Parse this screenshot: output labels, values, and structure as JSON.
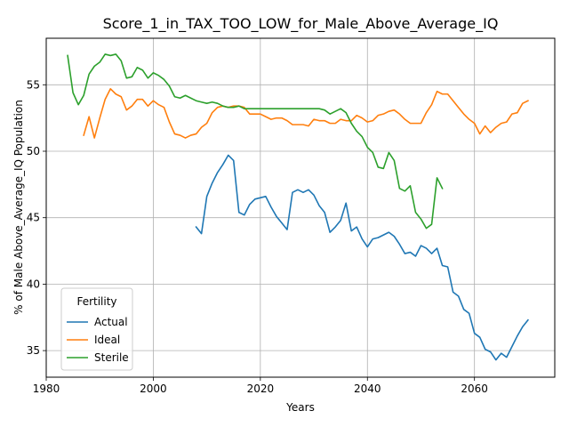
{
  "colors": {
    "actual": "#1f77b4",
    "ideal": "#ff7f0e",
    "sterile": "#2ca02c",
    "grid": "#b0b0b0"
  },
  "chart_data": {
    "type": "line",
    "title": "Score_1_in_TAX_TOO_LOW_for_Male_Above_Average_IQ",
    "xlabel": "Years",
    "ylabel": "% of Male Above_Average_IQ Population",
    "xlim": [
      1980,
      2075
    ],
    "ylim": [
      33,
      58.5
    ],
    "xticks": [
      1980,
      2000,
      2020,
      2040,
      2060
    ],
    "yticks": [
      35,
      40,
      45,
      50,
      55
    ],
    "grid": true,
    "legend": {
      "title": "Fertility",
      "position": "lower-left",
      "entries": [
        "Actual",
        "Ideal",
        "Sterile"
      ]
    },
    "series": [
      {
        "name": "Actual",
        "x": [
          2008,
          2009,
          2010,
          2011,
          2012,
          2013,
          2014,
          2015,
          2016,
          2017,
          2018,
          2019,
          2020,
          2021,
          2022,
          2023,
          2024,
          2025,
          2026,
          2027,
          2028,
          2029,
          2030,
          2031,
          2032,
          2033,
          2034,
          2035,
          2036,
          2037,
          2038,
          2039,
          2040,
          2041,
          2042,
          2043,
          2044,
          2045,
          2046,
          2047,
          2048,
          2049,
          2050,
          2051,
          2052,
          2053,
          2054,
          2055,
          2056,
          2057,
          2058,
          2059,
          2060,
          2061,
          2062,
          2063,
          2064,
          2065,
          2066,
          2067,
          2068,
          2069,
          2070
        ],
        "values": [
          44.3,
          43.8,
          46.6,
          47.6,
          48.4,
          49.0,
          49.7,
          49.3,
          45.4,
          45.2,
          46.0,
          46.4,
          46.5,
          46.6,
          45.8,
          45.1,
          44.6,
          44.1,
          46.9,
          47.1,
          46.9,
          47.1,
          46.7,
          45.9,
          45.4,
          43.9,
          44.3,
          44.8,
          46.1,
          44.0,
          44.3,
          43.4,
          42.8,
          43.4,
          43.5,
          43.7,
          43.9,
          43.6,
          43.0,
          42.3,
          42.4,
          42.1,
          42.9,
          42.7,
          42.3,
          42.7,
          41.4,
          41.3,
          39.4,
          39.1,
          38.1,
          37.8,
          36.3,
          36.0,
          35.1,
          34.9,
          34.3,
          34.8,
          34.5,
          35.3,
          36.1,
          36.8,
          37.3
        ]
      },
      {
        "name": "Ideal",
        "x": [
          1987,
          1988,
          1989,
          1990,
          1991,
          1992,
          1993,
          1994,
          1995,
          1996,
          1997,
          1998,
          1999,
          2000,
          2001,
          2002,
          2003,
          2004,
          2005,
          2006,
          2007,
          2008,
          2009,
          2010,
          2011,
          2012,
          2013,
          2014,
          2015,
          2016,
          2017,
          2018,
          2019,
          2020,
          2021,
          2022,
          2023,
          2024,
          2025,
          2026,
          2027,
          2028,
          2029,
          2030,
          2031,
          2032,
          2033,
          2034,
          2035,
          2036,
          2037,
          2038,
          2039,
          2040,
          2041,
          2042,
          2043,
          2044,
          2045,
          2046,
          2047,
          2048,
          2049,
          2050,
          2051,
          2052,
          2053,
          2054,
          2055,
          2056,
          2057,
          2058,
          2059,
          2060,
          2061,
          2062,
          2063,
          2064,
          2065,
          2066,
          2067,
          2068,
          2069,
          2070
        ],
        "values": [
          51.2,
          52.6,
          51.0,
          52.5,
          53.9,
          54.7,
          54.3,
          54.1,
          53.1,
          53.4,
          53.9,
          53.9,
          53.4,
          53.8,
          53.5,
          53.3,
          52.2,
          51.3,
          51.2,
          51.0,
          51.2,
          51.3,
          51.8,
          52.1,
          52.9,
          53.3,
          53.4,
          53.3,
          53.4,
          53.4,
          53.3,
          52.8,
          52.8,
          52.8,
          52.6,
          52.4,
          52.5,
          52.5,
          52.3,
          52.0,
          52.0,
          52.0,
          51.9,
          52.4,
          52.3,
          52.3,
          52.1,
          52.1,
          52.4,
          52.3,
          52.3,
          52.7,
          52.5,
          52.2,
          52.3,
          52.7,
          52.8,
          53.0,
          53.1,
          52.8,
          52.4,
          52.1,
          52.1,
          52.1,
          52.9,
          53.5,
          54.5,
          54.3,
          54.3,
          53.8,
          53.3,
          52.8,
          52.4,
          52.1,
          51.3,
          51.9,
          51.4,
          51.8,
          52.1,
          52.2,
          52.8,
          52.9,
          53.6,
          53.8
        ]
      },
      {
        "name": "Sterile",
        "x": [
          1984,
          1985,
          1986,
          1987,
          1988,
          1989,
          1990,
          1991,
          1992,
          1993,
          1994,
          1995,
          1996,
          1997,
          1998,
          1999,
          2000,
          2001,
          2002,
          2003,
          2004,
          2005,
          2006,
          2007,
          2008,
          2009,
          2010,
          2011,
          2012,
          2013,
          2014,
          2015,
          2016,
          2017,
          2018,
          2019,
          2020,
          2021,
          2022,
          2023,
          2024,
          2025,
          2026,
          2027,
          2028,
          2029,
          2030,
          2031,
          2032,
          2033,
          2034,
          2035,
          2036,
          2037,
          2038,
          2039,
          2040,
          2041,
          2042,
          2043,
          2044,
          2045,
          2046,
          2047,
          2048,
          2049,
          2050,
          2051,
          2052,
          2053,
          2054
        ],
        "values": [
          57.2,
          54.4,
          53.5,
          54.2,
          55.8,
          56.4,
          56.7,
          57.3,
          57.2,
          57.3,
          56.8,
          55.5,
          55.6,
          56.3,
          56.1,
          55.5,
          55.9,
          55.7,
          55.4,
          54.9,
          54.1,
          54.0,
          54.2,
          54.0,
          53.8,
          53.7,
          53.6,
          53.7,
          53.6,
          53.4,
          53.3,
          53.3,
          53.4,
          53.2,
          53.2,
          53.2,
          53.2,
          53.2,
          53.2,
          53.2,
          53.2,
          53.2,
          53.2,
          53.2,
          53.2,
          53.2,
          53.2,
          53.2,
          53.1,
          52.8,
          53.0,
          53.2,
          52.9,
          52.1,
          51.5,
          51.1,
          50.3,
          49.9,
          48.8,
          48.7,
          49.9,
          49.3,
          47.2,
          47.0,
          47.4,
          45.4,
          44.9,
          44.2,
          44.5,
          48.0,
          47.2
        ]
      }
    ]
  }
}
